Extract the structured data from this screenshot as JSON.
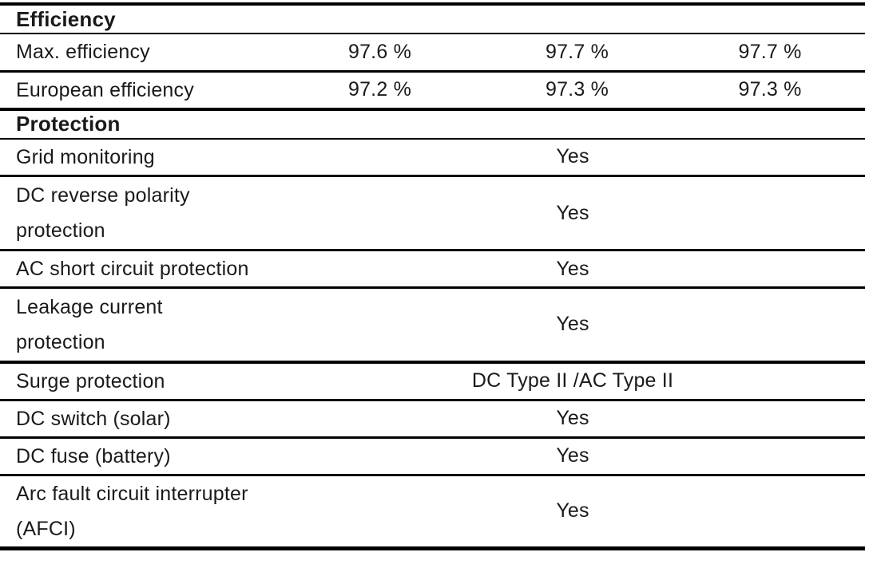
{
  "page": {
    "background_color": "#ffffff",
    "text_color": "#1a1a1a",
    "rule_color": "#000000"
  },
  "table": {
    "sections": [
      {
        "header": "Efficiency",
        "rows": [
          {
            "label_lines": [
              "Max. efficiency"
            ],
            "values": [
              "97.6 %",
              "97.7 %",
              "97.7 %"
            ]
          },
          {
            "label_lines": [
              "European efficiency"
            ],
            "values": [
              "97.2 %",
              "97.3 %",
              "97.3 %"
            ]
          }
        ]
      },
      {
        "header": "Protection",
        "rows": [
          {
            "label_lines": [
              "Grid monitoring"
            ],
            "value": "Yes"
          },
          {
            "label_lines": [
              "DC reverse polarity",
              "protection"
            ],
            "value": "Yes"
          },
          {
            "label_lines": [
              "AC short circuit protection"
            ],
            "value": "Yes"
          },
          {
            "label_lines": [
              "Leakage current",
              "protection"
            ],
            "value": "Yes"
          },
          {
            "label_lines": [
              "Surge protection"
            ],
            "value": "DC Type II /AC Type II"
          },
          {
            "label_lines": [
              "DC switch (solar)"
            ],
            "value": "Yes"
          },
          {
            "label_lines": [
              "DC fuse (battery)"
            ],
            "value": "Yes"
          },
          {
            "label_lines": [
              "Arc fault circuit interrupter",
              "(AFCI)"
            ],
            "value": "Yes"
          }
        ]
      }
    ]
  }
}
